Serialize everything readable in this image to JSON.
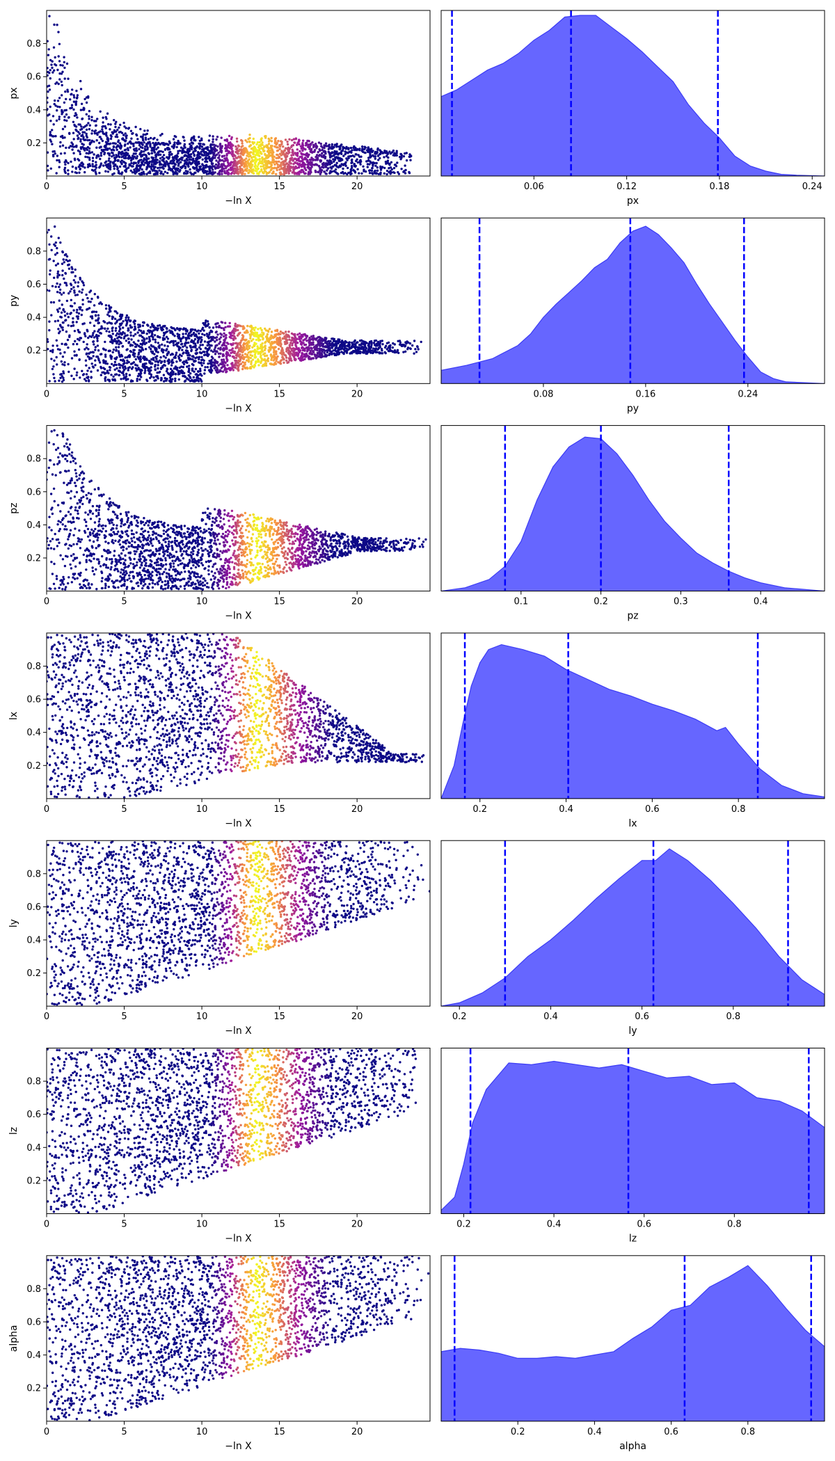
{
  "figure": {
    "colors": {
      "trace_low": "#0d0887",
      "trace_mid": "#9c179e",
      "trace_hot": "#f0f921",
      "kde_fill": "#6666ff",
      "kde_edge": "#3b3bf5",
      "quantile_line": "#0000ff"
    }
  },
  "chart_data": [
    {
      "type": "scatter",
      "param": "px",
      "xlabel": "−ln X",
      "ylabel": "px",
      "xlim": [
        0,
        24.7
      ],
      "ylim": [
        0,
        1.0
      ],
      "xticks": [
        0,
        5,
        10,
        15,
        20
      ],
      "yticks": [
        0.2,
        0.4,
        0.6,
        0.8
      ],
      "bulk_y": [
        0.02,
        0.25
      ],
      "tail_x": 23.5,
      "shape": "decay",
      "hot_x": [
        11,
        17
      ],
      "max_y_hot": 0.28
    },
    {
      "type": "area",
      "param": "px",
      "xlabel": "px",
      "xlim": [
        0.0,
        0.248
      ],
      "xticks": [
        0.06,
        0.12,
        0.18,
        0.24
      ],
      "quantiles": [
        0.007,
        0.084,
        0.179
      ],
      "kde": [
        [
          0.0,
          0.48
        ],
        [
          0.01,
          0.52
        ],
        [
          0.02,
          0.58
        ],
        [
          0.03,
          0.64
        ],
        [
          0.04,
          0.68
        ],
        [
          0.05,
          0.74
        ],
        [
          0.06,
          0.82
        ],
        [
          0.07,
          0.88
        ],
        [
          0.08,
          0.96
        ],
        [
          0.09,
          0.97
        ],
        [
          0.1,
          0.97
        ],
        [
          0.11,
          0.9
        ],
        [
          0.12,
          0.83
        ],
        [
          0.13,
          0.75
        ],
        [
          0.14,
          0.66
        ],
        [
          0.15,
          0.57
        ],
        [
          0.16,
          0.43
        ],
        [
          0.17,
          0.32
        ],
        [
          0.18,
          0.23
        ],
        [
          0.19,
          0.12
        ],
        [
          0.2,
          0.06
        ],
        [
          0.21,
          0.03
        ],
        [
          0.22,
          0.01
        ],
        [
          0.23,
          0.005
        ],
        [
          0.248,
          0.0
        ]
      ]
    },
    {
      "type": "scatter",
      "param": "py",
      "xlabel": "−ln X",
      "ylabel": "py",
      "xlim": [
        0,
        24.7
      ],
      "ylim": [
        0,
        1.0
      ],
      "xticks": [
        0,
        5,
        10,
        15,
        20
      ],
      "yticks": [
        0.2,
        0.4,
        0.6,
        0.8
      ],
      "bulk_y": [
        0.02,
        0.28
      ],
      "tail_x": 24.2,
      "shape": "converge",
      "target": 0.22,
      "hot_x": [
        11,
        17
      ],
      "max_y_hot": 0.3
    },
    {
      "type": "area",
      "param": "py",
      "xlabel": "py",
      "xlim": [
        0.0,
        0.3
      ],
      "xticks": [
        0.08,
        0.16,
        0.24
      ],
      "quantiles": [
        0.03,
        0.148,
        0.237
      ],
      "kde": [
        [
          0.0,
          0.08
        ],
        [
          0.02,
          0.11
        ],
        [
          0.04,
          0.15
        ],
        [
          0.06,
          0.23
        ],
        [
          0.07,
          0.3
        ],
        [
          0.08,
          0.4
        ],
        [
          0.09,
          0.48
        ],
        [
          0.1,
          0.55
        ],
        [
          0.11,
          0.62
        ],
        [
          0.12,
          0.7
        ],
        [
          0.13,
          0.75
        ],
        [
          0.14,
          0.85
        ],
        [
          0.15,
          0.92
        ],
        [
          0.16,
          0.95
        ],
        [
          0.17,
          0.9
        ],
        [
          0.18,
          0.82
        ],
        [
          0.19,
          0.73
        ],
        [
          0.2,
          0.6
        ],
        [
          0.21,
          0.48
        ],
        [
          0.22,
          0.37
        ],
        [
          0.23,
          0.26
        ],
        [
          0.24,
          0.16
        ],
        [
          0.25,
          0.07
        ],
        [
          0.26,
          0.03
        ],
        [
          0.27,
          0.01
        ],
        [
          0.3,
          0.0
        ]
      ]
    },
    {
      "type": "scatter",
      "param": "pz",
      "xlabel": "−ln X",
      "ylabel": "pz",
      "xlim": [
        0,
        24.7
      ],
      "ylim": [
        0,
        1.0
      ],
      "xticks": [
        0,
        5,
        10,
        15,
        20
      ],
      "yticks": [
        0.2,
        0.4,
        0.6,
        0.8
      ],
      "bulk_y": [
        0.03,
        0.45
      ],
      "tail_x": 24.5,
      "shape": "converge",
      "target": 0.28,
      "hot_x": [
        11,
        17
      ],
      "max_y_hot": 0.46
    },
    {
      "type": "area",
      "param": "pz",
      "xlabel": "pz",
      "xlim": [
        0.0,
        0.48
      ],
      "xticks": [
        0.1,
        0.2,
        0.3,
        0.4
      ],
      "quantiles": [
        0.08,
        0.2,
        0.36
      ],
      "kde": [
        [
          0.0,
          0.0
        ],
        [
          0.03,
          0.02
        ],
        [
          0.06,
          0.07
        ],
        [
          0.08,
          0.15
        ],
        [
          0.1,
          0.3
        ],
        [
          0.12,
          0.55
        ],
        [
          0.14,
          0.75
        ],
        [
          0.16,
          0.87
        ],
        [
          0.18,
          0.93
        ],
        [
          0.2,
          0.92
        ],
        [
          0.22,
          0.83
        ],
        [
          0.24,
          0.7
        ],
        [
          0.26,
          0.55
        ],
        [
          0.28,
          0.42
        ],
        [
          0.3,
          0.32
        ],
        [
          0.32,
          0.23
        ],
        [
          0.34,
          0.17
        ],
        [
          0.36,
          0.12
        ],
        [
          0.38,
          0.08
        ],
        [
          0.4,
          0.05
        ],
        [
          0.43,
          0.02
        ],
        [
          0.48,
          0.0
        ]
      ]
    },
    {
      "type": "scatter",
      "param": "lx",
      "xlabel": "−ln X",
      "ylabel": "lx",
      "xlim": [
        0,
        24.7
      ],
      "ylim": [
        0,
        1.0
      ],
      "xticks": [
        0,
        5,
        10,
        15,
        20
      ],
      "yticks": [
        0.2,
        0.4,
        0.6,
        0.8
      ],
      "bulk_y": [
        0.0,
        1.0
      ],
      "tail_x": 24.3,
      "shape": "spread_narrow",
      "target": 0.22,
      "hot_x": [
        11,
        17
      ],
      "max_y_hot": 1.0
    },
    {
      "type": "area",
      "param": "lx",
      "xlabel": "lx",
      "xlim": [
        0.11,
        1.0
      ],
      "xticks": [
        0.2,
        0.4,
        0.6,
        0.8
      ],
      "quantiles": [
        0.165,
        0.405,
        0.845
      ],
      "kde": [
        [
          0.11,
          0.0
        ],
        [
          0.14,
          0.2
        ],
        [
          0.16,
          0.45
        ],
        [
          0.18,
          0.68
        ],
        [
          0.2,
          0.82
        ],
        [
          0.22,
          0.9
        ],
        [
          0.25,
          0.93
        ],
        [
          0.3,
          0.9
        ],
        [
          0.35,
          0.86
        ],
        [
          0.4,
          0.78
        ],
        [
          0.45,
          0.72
        ],
        [
          0.5,
          0.66
        ],
        [
          0.55,
          0.62
        ],
        [
          0.6,
          0.57
        ],
        [
          0.65,
          0.53
        ],
        [
          0.7,
          0.48
        ],
        [
          0.75,
          0.41
        ],
        [
          0.77,
          0.43
        ],
        [
          0.8,
          0.33
        ],
        [
          0.85,
          0.18
        ],
        [
          0.9,
          0.08
        ],
        [
          0.95,
          0.03
        ],
        [
          1.0,
          0.01
        ]
      ]
    },
    {
      "type": "scatter",
      "param": "ly",
      "xlabel": "−ln X",
      "ylabel": "ly",
      "xlim": [
        0,
        24.7
      ],
      "ylim": [
        0,
        1.0
      ],
      "xticks": [
        0,
        5,
        10,
        15,
        20
      ],
      "yticks": [
        0.2,
        0.4,
        0.6,
        0.8
      ],
      "bulk_y": [
        0.0,
        1.0
      ],
      "tail_x": 24.7,
      "shape": "spread_high",
      "target": 0.82,
      "hot_x": [
        11,
        17
      ],
      "max_y_hot": 1.0
    },
    {
      "type": "area",
      "param": "ly",
      "xlabel": "ly",
      "xlim": [
        0.16,
        1.0
      ],
      "xticks": [
        0.2,
        0.4,
        0.6,
        0.8
      ],
      "quantiles": [
        0.3,
        0.625,
        0.92
      ],
      "kde": [
        [
          0.16,
          0.0
        ],
        [
          0.2,
          0.02
        ],
        [
          0.25,
          0.08
        ],
        [
          0.3,
          0.17
        ],
        [
          0.35,
          0.3
        ],
        [
          0.4,
          0.4
        ],
        [
          0.45,
          0.52
        ],
        [
          0.5,
          0.65
        ],
        [
          0.55,
          0.77
        ],
        [
          0.6,
          0.88
        ],
        [
          0.63,
          0.88
        ],
        [
          0.66,
          0.95
        ],
        [
          0.7,
          0.88
        ],
        [
          0.75,
          0.76
        ],
        [
          0.8,
          0.62
        ],
        [
          0.85,
          0.47
        ],
        [
          0.9,
          0.3
        ],
        [
          0.95,
          0.16
        ],
        [
          1.0,
          0.07
        ]
      ]
    },
    {
      "type": "scatter",
      "param": "lz",
      "xlabel": "−ln X",
      "ylabel": "lz",
      "xlim": [
        0,
        24.7
      ],
      "ylim": [
        0,
        1.0
      ],
      "xticks": [
        0,
        5,
        10,
        15,
        20
      ],
      "yticks": [
        0.2,
        0.4,
        0.6,
        0.8
      ],
      "bulk_y": [
        0.0,
        1.0
      ],
      "tail_x": 23.8,
      "shape": "spread_high",
      "target": 0.8,
      "hot_x": [
        11,
        17
      ],
      "max_y_hot": 1.0
    },
    {
      "type": "area",
      "param": "lz",
      "xlabel": "lz",
      "xlim": [
        0.15,
        1.0
      ],
      "xticks": [
        0.2,
        0.4,
        0.6,
        0.8
      ],
      "quantiles": [
        0.215,
        0.565,
        0.965
      ],
      "kde": [
        [
          0.15,
          0.02
        ],
        [
          0.18,
          0.1
        ],
        [
          0.2,
          0.3
        ],
        [
          0.22,
          0.55
        ],
        [
          0.25,
          0.75
        ],
        [
          0.3,
          0.91
        ],
        [
          0.35,
          0.9
        ],
        [
          0.4,
          0.92
        ],
        [
          0.45,
          0.9
        ],
        [
          0.5,
          0.88
        ],
        [
          0.55,
          0.9
        ],
        [
          0.6,
          0.86
        ],
        [
          0.65,
          0.82
        ],
        [
          0.7,
          0.83
        ],
        [
          0.75,
          0.78
        ],
        [
          0.8,
          0.79
        ],
        [
          0.85,
          0.7
        ],
        [
          0.9,
          0.68
        ],
        [
          0.95,
          0.62
        ],
        [
          1.0,
          0.52
        ]
      ]
    },
    {
      "type": "scatter",
      "param": "alpha",
      "xlabel": "−ln X",
      "ylabel": "alpha",
      "xlim": [
        0,
        24.7
      ],
      "ylim": [
        0,
        1.0
      ],
      "xticks": [
        0,
        5,
        10,
        15,
        20
      ],
      "yticks": [
        0.2,
        0.4,
        0.6,
        0.8
      ],
      "bulk_y": [
        0.0,
        1.0
      ],
      "tail_x": 24.7,
      "shape": "spread_high",
      "target": 0.78,
      "hot_x": [
        11,
        17
      ],
      "max_y_hot": 1.0
    },
    {
      "type": "area",
      "param": "alpha",
      "xlabel": "alpha",
      "xlim": [
        0.0,
        1.0
      ],
      "xticks": [
        0.2,
        0.4,
        0.6,
        0.8
      ],
      "quantiles": [
        0.035,
        0.635,
        0.965
      ],
      "kde": [
        [
          0.0,
          0.42
        ],
        [
          0.05,
          0.44
        ],
        [
          0.1,
          0.43
        ],
        [
          0.15,
          0.41
        ],
        [
          0.2,
          0.38
        ],
        [
          0.25,
          0.38
        ],
        [
          0.3,
          0.39
        ],
        [
          0.35,
          0.38
        ],
        [
          0.4,
          0.4
        ],
        [
          0.45,
          0.42
        ],
        [
          0.5,
          0.5
        ],
        [
          0.55,
          0.57
        ],
        [
          0.6,
          0.67
        ],
        [
          0.65,
          0.7
        ],
        [
          0.7,
          0.81
        ],
        [
          0.75,
          0.87
        ],
        [
          0.8,
          0.94
        ],
        [
          0.85,
          0.82
        ],
        [
          0.9,
          0.68
        ],
        [
          0.95,
          0.55
        ],
        [
          1.0,
          0.45
        ]
      ]
    }
  ]
}
